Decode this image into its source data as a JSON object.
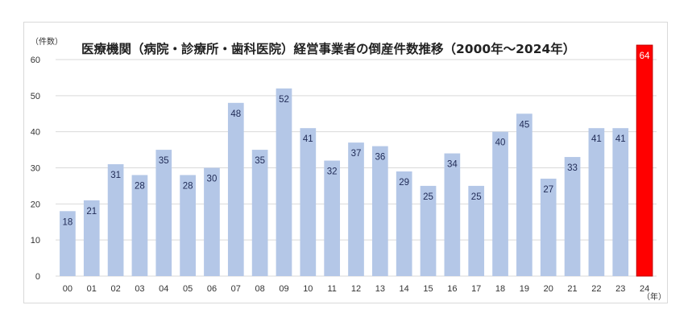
{
  "chart_data": {
    "type": "bar",
    "title": "医療機関（病院・診療所・歯科医院）経営事業者の倒産件数推移（2000年～2024年）",
    "ylabel": "（件数）",
    "xlabel": "（年）",
    "ylim": [
      0,
      60
    ],
    "yticks": [
      "0",
      "10",
      "20",
      "30",
      "40",
      "50",
      "60"
    ],
    "categories": [
      "00",
      "01",
      "02",
      "03",
      "04",
      "05",
      "06",
      "07",
      "08",
      "09",
      "10",
      "11",
      "12",
      "13",
      "14",
      "15",
      "16",
      "17",
      "18",
      "19",
      "20",
      "21",
      "22",
      "23",
      "24"
    ],
    "values": [
      18,
      21,
      31,
      28,
      35,
      28,
      30,
      48,
      35,
      52,
      41,
      32,
      37,
      36,
      29,
      25,
      34,
      25,
      40,
      45,
      27,
      33,
      41,
      41,
      64
    ],
    "grid": true,
    "colors": {
      "bar": "#b4c7e7",
      "highlight": "#ff0000",
      "highlight_border": "#c00000",
      "grid": "#d9d9d9"
    },
    "highlight_category": "24"
  }
}
